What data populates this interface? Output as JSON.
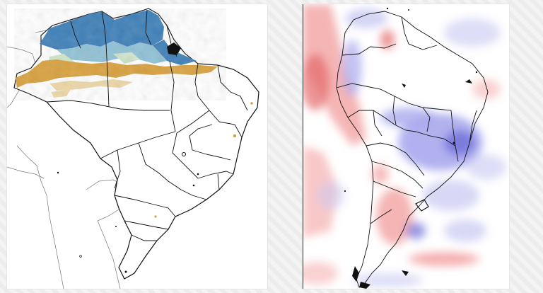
{
  "panels": [
    {
      "name": "brazil-precipitation-map"
    },
    {
      "name": "south-america-anomaly-map"
    }
  ],
  "colors": {
    "background": "#f2f2f2",
    "rain_heavy": "#3d7fb8",
    "rain_moderate": "#8fc1d6",
    "rain_light": "#cde4c8",
    "dry_orange": "#d8a03c",
    "dry_light": "#ecd6a6",
    "anomaly_warm": "#f3a3a3",
    "anomaly_warm_strong": "#e46a6a",
    "anomaly_cold": "#a9a9ee",
    "anomaly_cold_strong": "#6f6fd8",
    "boundary": "#111111"
  }
}
